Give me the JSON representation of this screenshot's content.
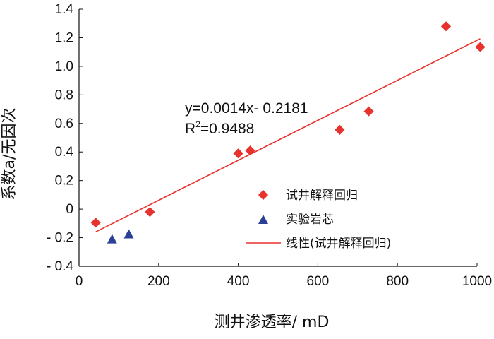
{
  "chart_data": {
    "type": "scatter",
    "xlabel": "测井渗透率/ mD",
    "ylabel": "系数a/无因次",
    "xlim": [
      0,
      1000
    ],
    "ylim": [
      -0.4,
      1.4
    ],
    "x_ticks": [
      "0",
      "200",
      "400",
      "600",
      "800",
      "1000"
    ],
    "y_ticks": [
      "1.4",
      "1.2",
      "1.0",
      "0.8",
      "0.6",
      "0.4",
      "0.2",
      "0",
      "- 0.2",
      "- 0.4"
    ],
    "grid": false,
    "legend_position": "lower-right",
    "series": [
      {
        "name": "试井解释回归",
        "marker": "diamond",
        "color": "#e8322d",
        "points": [
          {
            "x": 42,
            "y": -0.095
          },
          {
            "x": 178,
            "y": -0.02
          },
          {
            "x": 400,
            "y": 0.39
          },
          {
            "x": 430,
            "y": 0.41
          },
          {
            "x": 655,
            "y": 0.555
          },
          {
            "x": 728,
            "y": 0.685
          },
          {
            "x": 922,
            "y": 1.28
          },
          {
            "x": 1008,
            "y": 1.135
          }
        ]
      },
      {
        "name": "实验岩芯",
        "marker": "triangle",
        "color": "#2b3f95",
        "points": [
          {
            "x": 83,
            "y": -0.215
          },
          {
            "x": 125,
            "y": -0.18
          }
        ]
      }
    ],
    "trendline": {
      "name": "线性(试井解释回归)",
      "color": "#e8322d",
      "slope": 0.0014,
      "intercept": -0.2181,
      "x_range": [
        42,
        1008
      ]
    },
    "annotations": {
      "equation": "y=0.0014x- 0.2181",
      "r2_prefix": "R",
      "r2_sup": "2",
      "r2_value": "=0.9488"
    }
  }
}
